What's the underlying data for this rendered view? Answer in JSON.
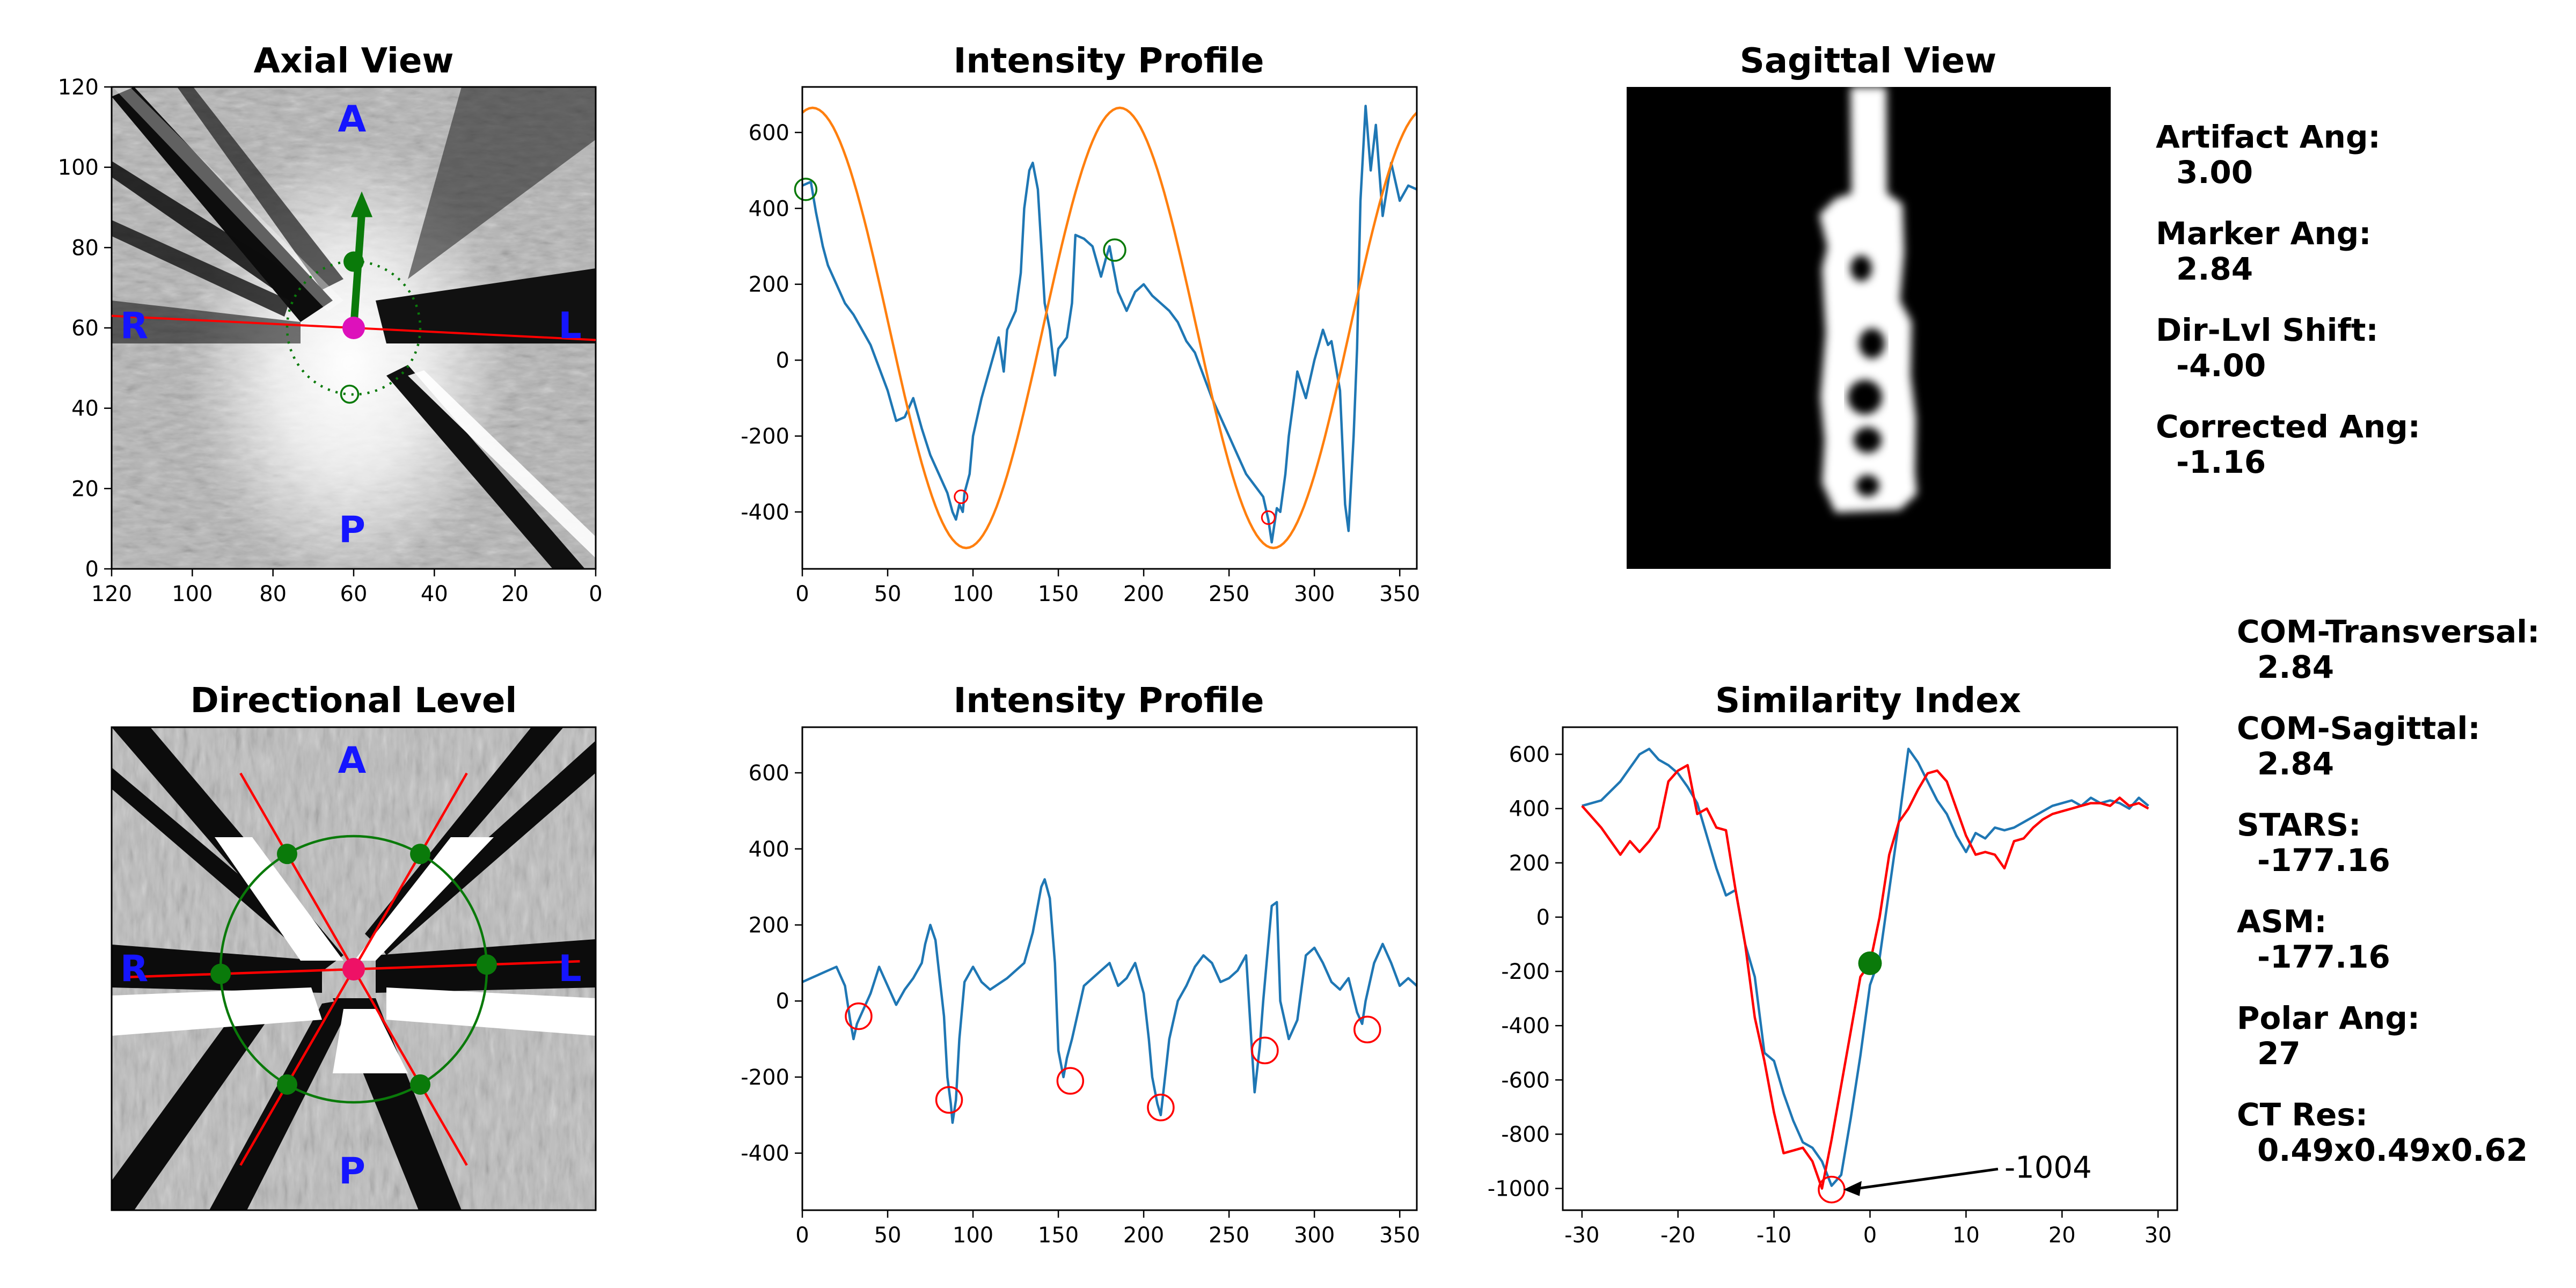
{
  "chart_data": [
    {
      "id": "axial",
      "type": "image",
      "title": "Axial View",
      "xlim": [
        120,
        0
      ],
      "ylim": [
        0,
        120
      ],
      "x_ticks": [
        120,
        100,
        80,
        60,
        40,
        20,
        0
      ],
      "y_ticks": [
        0,
        20,
        40,
        60,
        80,
        100,
        120
      ],
      "orientation_labels": {
        "anterior": "A",
        "posterior": "P",
        "right": "R",
        "left": "L"
      },
      "center": [
        60,
        60
      ],
      "marker_green": [
        60,
        76.5
      ],
      "marker_open": [
        61,
        43.5
      ],
      "arrow_tip": [
        58,
        94
      ],
      "artifact_line": [
        [
          120,
          63
        ],
        [
          0,
          57
        ]
      ],
      "colors": {
        "arrow": "#0a7a0a",
        "center": "#dd11bb",
        "line": "#ff0000",
        "ring": "#0a7a0a"
      }
    },
    {
      "id": "profile1",
      "type": "line",
      "title": "Intensity Profile",
      "xlim": [
        0,
        360
      ],
      "ylim": [
        -550,
        720
      ],
      "x_ticks": [
        0,
        50,
        100,
        150,
        200,
        250,
        300,
        350
      ],
      "y_ticks": [
        -400,
        -200,
        0,
        200,
        400,
        600
      ],
      "series": [
        {
          "color": "#1f77b4",
          "x": [
            0,
            5,
            8,
            12,
            15,
            20,
            25,
            30,
            35,
            40,
            45,
            50,
            55,
            60,
            65,
            70,
            75,
            80,
            85,
            88,
            90,
            92,
            94,
            95,
            98,
            100,
            105,
            110,
            115,
            118,
            120,
            125,
            128,
            130,
            133,
            135,
            138,
            140,
            142,
            145,
            148,
            150,
            155,
            158,
            160,
            165,
            170,
            175,
            178,
            180,
            182,
            185,
            188,
            190,
            195,
            200,
            205,
            210,
            215,
            220,
            225,
            230,
            235,
            240,
            245,
            250,
            255,
            260,
            265,
            270,
            273,
            275,
            278,
            280,
            283,
            285,
            288,
            290,
            295,
            300,
            305,
            308,
            310,
            315,
            318,
            320,
            323,
            325,
            327,
            330,
            333,
            336,
            340,
            345,
            350,
            355,
            360
          ],
          "y": [
            460,
            470,
            390,
            300,
            250,
            200,
            150,
            120,
            80,
            40,
            -20,
            -80,
            -160,
            -150,
            -100,
            -180,
            -250,
            -300,
            -350,
            -400,
            -420,
            -380,
            -400,
            -350,
            -300,
            -200,
            -100,
            -20,
            60,
            -30,
            80,
            130,
            230,
            400,
            500,
            520,
            450,
            300,
            150,
            80,
            -40,
            30,
            60,
            150,
            330,
            320,
            300,
            220,
            270,
            300,
            250,
            180,
            150,
            130,
            180,
            200,
            170,
            150,
            130,
            100,
            50,
            20,
            -40,
            -100,
            -150,
            -200,
            -250,
            -300,
            -330,
            -360,
            -420,
            -480,
            -390,
            -400,
            -300,
            -200,
            -100,
            -30,
            -100,
            0,
            80,
            40,
            50,
            -80,
            -380,
            -450,
            -200,
            30,
            420,
            670,
            500,
            620,
            380,
            520,
            420,
            460,
            450
          ]
        },
        {
          "color": "#ff7f0e",
          "amplitude": 580,
          "offset": 85,
          "phase_deg": 6
        }
      ],
      "markers": [
        {
          "x": 2,
          "y": 450,
          "color": "green"
        },
        {
          "x": 183,
          "y": 290,
          "color": "green"
        },
        {
          "x": 93,
          "y": -360,
          "color": "red"
        },
        {
          "x": 273,
          "y": -415,
          "color": "red"
        }
      ]
    },
    {
      "id": "sagittal",
      "type": "image",
      "title": "Sagittal View"
    },
    {
      "id": "directional",
      "type": "image",
      "title": "Directional Level",
      "orientation_labels": {
        "anterior": "A",
        "posterior": "P",
        "right": "R",
        "left": "L"
      },
      "center": [
        60,
        60
      ],
      "ring_radius": 33,
      "spoke_angles_deg": [
        -2,
        60,
        120,
        178,
        240,
        300
      ],
      "colors": {
        "spoke": "#ff0000",
        "center": "#ee1166",
        "ring": "#0a7a0a",
        "dot": "#0a7a0a"
      }
    },
    {
      "id": "profile2",
      "type": "line",
      "title": "Intensity Profile",
      "xlim": [
        0,
        360
      ],
      "ylim": [
        -550,
        720
      ],
      "x_ticks": [
        0,
        50,
        100,
        150,
        200,
        250,
        300,
        350
      ],
      "y_ticks": [
        -400,
        -200,
        0,
        200,
        400,
        600
      ],
      "series": [
        {
          "color": "#1f77b4",
          "x": [
            0,
            5,
            10,
            15,
            20,
            25,
            28,
            30,
            32,
            35,
            40,
            45,
            50,
            55,
            60,
            65,
            70,
            72,
            75,
            78,
            80,
            83,
            85,
            87,
            88,
            90,
            92,
            95,
            100,
            105,
            110,
            120,
            130,
            135,
            140,
            142,
            145,
            148,
            150,
            153,
            155,
            158,
            160,
            165,
            170,
            175,
            180,
            185,
            190,
            195,
            200,
            203,
            205,
            208,
            210,
            212,
            215,
            220,
            225,
            230,
            235,
            240,
            245,
            250,
            255,
            260,
            263,
            265,
            268,
            270,
            272,
            275,
            278,
            280,
            285,
            290,
            295,
            300,
            305,
            310,
            315,
            320,
            325,
            328,
            330,
            335,
            340,
            345,
            350,
            355,
            360
          ],
          "y": [
            50,
            60,
            70,
            80,
            90,
            40,
            -50,
            -100,
            -60,
            -30,
            20,
            90,
            40,
            -10,
            30,
            60,
            100,
            150,
            200,
            160,
            80,
            -40,
            -200,
            -270,
            -320,
            -260,
            -100,
            50,
            90,
            50,
            30,
            60,
            100,
            180,
            300,
            320,
            270,
            100,
            -130,
            -200,
            -150,
            -100,
            -60,
            40,
            60,
            80,
            100,
            40,
            60,
            100,
            20,
            -100,
            -200,
            -270,
            -300,
            -220,
            -100,
            0,
            40,
            90,
            120,
            100,
            50,
            60,
            80,
            120,
            -100,
            -240,
            -120,
            0,
            100,
            250,
            260,
            0,
            -100,
            -50,
            120,
            140,
            100,
            50,
            30,
            60,
            -30,
            -60,
            0,
            100,
            150,
            100,
            40,
            60,
            40
          ]
        }
      ],
      "markers": [
        {
          "x": 33,
          "y": -40,
          "color": "red"
        },
        {
          "x": 86,
          "y": -260,
          "color": "red"
        },
        {
          "x": 157,
          "y": -210,
          "color": "red"
        },
        {
          "x": 210,
          "y": -280,
          "color": "red"
        },
        {
          "x": 271,
          "y": -130,
          "color": "red"
        },
        {
          "x": 331,
          "y": -75,
          "color": "red"
        }
      ]
    },
    {
      "id": "similarity",
      "type": "line",
      "title": "Similarity Index",
      "xlim": [
        -32,
        32
      ],
      "ylim": [
        -1080,
        700
      ],
      "x_ticks": [
        -30,
        -20,
        -10,
        0,
        10,
        20,
        30
      ],
      "y_ticks": [
        -1000,
        -800,
        -600,
        -400,
        -200,
        0,
        200,
        400,
        600
      ],
      "series": [
        {
          "color": "#1f77b4",
          "x": [
            -30,
            -28,
            -26,
            -24,
            -23,
            -22,
            -21,
            -20,
            -19,
            -18,
            -17,
            -16,
            -15,
            -14,
            -13,
            -12,
            -11,
            -10,
            -9,
            -8,
            -7,
            -6,
            -5,
            -4,
            -3,
            -2,
            -1,
            0,
            1,
            2,
            3,
            4,
            5,
            6,
            7,
            8,
            9,
            10,
            11,
            12,
            13,
            14,
            15,
            16,
            17,
            18,
            19,
            20,
            21,
            22,
            23,
            24,
            25,
            26,
            27,
            28,
            29
          ],
          "y": [
            410,
            430,
            500,
            600,
            620,
            580,
            560,
            530,
            480,
            420,
            300,
            180,
            80,
            100,
            -100,
            -220,
            -500,
            -530,
            -650,
            -750,
            -830,
            -850,
            -900,
            -990,
            -950,
            -740,
            -510,
            -250,
            -150,
            100,
            350,
            620,
            570,
            500,
            430,
            380,
            300,
            240,
            310,
            290,
            330,
            320,
            330,
            350,
            370,
            390,
            410,
            420,
            430,
            410,
            440,
            420,
            430,
            420,
            400,
            440,
            410
          ]
        },
        {
          "color": "#ff0000",
          "x": [
            -30,
            -28,
            -27,
            -26,
            -25,
            -24,
            -23,
            -22,
            -21,
            -20,
            -19,
            -18,
            -17,
            -16,
            -15,
            -14,
            -13,
            -12,
            -11,
            -10,
            -9,
            -8,
            -7,
            -6,
            -5,
            -4,
            -3,
            -2,
            -1,
            0,
            1,
            2,
            3,
            4,
            5,
            6,
            7,
            8,
            9,
            10,
            11,
            12,
            13,
            14,
            15,
            16,
            17,
            18,
            19,
            20,
            21,
            22,
            23,
            24,
            25,
            26,
            27,
            28,
            29
          ],
          "y": [
            410,
            330,
            280,
            230,
            280,
            240,
            280,
            330,
            500,
            540,
            560,
            380,
            400,
            330,
            320,
            100,
            -100,
            -370,
            -530,
            -720,
            -870,
            -860,
            -850,
            -900,
            -1000,
            -820,
            -620,
            -420,
            -220,
            -170,
            0,
            230,
            350,
            400,
            470,
            530,
            540,
            500,
            400,
            300,
            230,
            240,
            230,
            180,
            280,
            290,
            330,
            360,
            380,
            390,
            400,
            410,
            420,
            420,
            410,
            440,
            410,
            420,
            400
          ]
        }
      ],
      "markers": [
        {
          "x": -4,
          "y": -1004,
          "color": "red"
        },
        {
          "x": 0,
          "y": -170,
          "color": "green"
        }
      ],
      "annotation": {
        "text": "-1004",
        "xy": [
          -4,
          -1004
        ],
        "xytext": [
          14,
          -960
        ]
      }
    }
  ],
  "info_panel_top": [
    {
      "label": "Artifact Ang:",
      "value": "3.00"
    },
    {
      "label": "Marker Ang:",
      "value": "2.84"
    },
    {
      "label": "Dir-Lvl Shift:",
      "value": "-4.00"
    },
    {
      "label": "Corrected Ang:",
      "value": "-1.16"
    }
  ],
  "info_panel_bottom": [
    {
      "label": "COM-Transversal:",
      "value": "2.84"
    },
    {
      "label": "COM-Sagittal:",
      "value": "2.84"
    },
    {
      "label": "STARS:",
      "value": "-177.16"
    },
    {
      "label": "ASM:",
      "value": "-177.16"
    },
    {
      "label": "Polar Ang:",
      "value": "27"
    },
    {
      "label": "CT Res:",
      "value": "0.49x0.49x0.62"
    }
  ]
}
